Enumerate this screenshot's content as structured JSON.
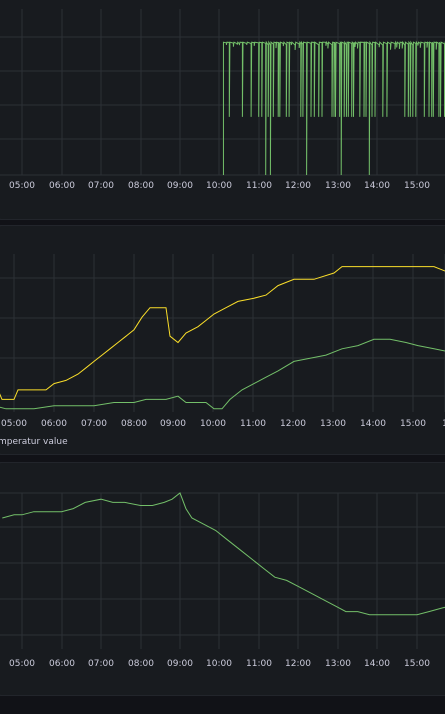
{
  "dashboard": {
    "theme": {
      "background": "#111217",
      "panel_bg": "#181b1f",
      "grid": "#2c3036",
      "text": "#ccccdc"
    }
  },
  "chart_data": [
    {
      "type": "line",
      "title": "",
      "xlabel": "",
      "ylabel": "",
      "grid": true,
      "x_ticks": [
        "05:00",
        "06:00",
        "07:00",
        "08:00",
        "09:00",
        "10:00",
        "11:00",
        "12:00",
        "13:00",
        "14:00",
        "15:00"
      ],
      "x_range_hours": [
        4.5,
        16.2
      ],
      "y_range": [
        0,
        4
      ],
      "series": [
        {
          "color": "#73bf69",
          "style": "binary-dense",
          "start_hour": 10.1,
          "high": 3.2,
          "low_mid": 1.4,
          "drops_to_zero_at_hours": [
            10.1,
            11.15,
            11.3,
            12.2,
            13.1,
            13.8
          ]
        }
      ]
    },
    {
      "type": "line",
      "title": "",
      "xlabel": "",
      "ylabel": "",
      "grid": true,
      "legend": {
        "placement": "bottom-left",
        "text": "mperatur value"
      },
      "x_ticks": [
        "05:00",
        "06:00",
        "07:00",
        "08:00",
        "09:00",
        "10:00",
        "11:00",
        "12:00",
        "13:00",
        "14:00",
        "15:00",
        "1"
      ],
      "x_range_hours": [
        4.0,
        15.9
      ],
      "y_range": [
        0,
        5
      ],
      "series": [
        {
          "color": "#fade2a",
          "points": [
            [
              4.0,
              0.7
            ],
            [
              4.6,
              0.7
            ],
            [
              4.7,
              0.4
            ],
            [
              5.0,
              0.4
            ],
            [
              5.1,
              0.7
            ],
            [
              5.8,
              0.7
            ],
            [
              6.0,
              0.9
            ],
            [
              6.3,
              1.0
            ],
            [
              6.6,
              1.2
            ],
            [
              6.8,
              1.4
            ],
            [
              7.0,
              1.6
            ],
            [
              7.2,
              1.8
            ],
            [
              7.4,
              2.0
            ],
            [
              7.6,
              2.2
            ],
            [
              7.8,
              2.4
            ],
            [
              8.0,
              2.6
            ],
            [
              8.2,
              3.0
            ],
            [
              8.4,
              3.3
            ],
            [
              8.7,
              3.3
            ],
            [
              8.8,
              3.3
            ],
            [
              8.9,
              2.4
            ],
            [
              9.1,
              2.2
            ],
            [
              9.3,
              2.5
            ],
            [
              9.6,
              2.7
            ],
            [
              9.8,
              2.9
            ],
            [
              10.0,
              3.1
            ],
            [
              10.3,
              3.3
            ],
            [
              10.6,
              3.5
            ],
            [
              11.0,
              3.6
            ],
            [
              11.3,
              3.7
            ],
            [
              11.6,
              4.0
            ],
            [
              12.0,
              4.2
            ],
            [
              12.5,
              4.2
            ],
            [
              13.0,
              4.4
            ],
            [
              13.2,
              4.6
            ],
            [
              13.8,
              4.6
            ],
            [
              14.5,
              4.6
            ],
            [
              15.5,
              4.6
            ],
            [
              15.9,
              4.4
            ]
          ]
        },
        {
          "color": "#73bf69",
          "points": [
            [
              4.0,
              0.2
            ],
            [
              4.5,
              0.2
            ],
            [
              4.8,
              0.1
            ],
            [
              5.5,
              0.1
            ],
            [
              6.0,
              0.2
            ],
            [
              7.0,
              0.2
            ],
            [
              7.5,
              0.3
            ],
            [
              8.0,
              0.3
            ],
            [
              8.3,
              0.4
            ],
            [
              8.8,
              0.4
            ],
            [
              9.1,
              0.5
            ],
            [
              9.3,
              0.3
            ],
            [
              9.8,
              0.3
            ],
            [
              10.0,
              0.1
            ],
            [
              10.2,
              0.1
            ],
            [
              10.4,
              0.4
            ],
            [
              10.7,
              0.7
            ],
            [
              11.0,
              0.9
            ],
            [
              11.3,
              1.1
            ],
            [
              11.6,
              1.3
            ],
            [
              12.0,
              1.6
            ],
            [
              12.4,
              1.7
            ],
            [
              12.8,
              1.8
            ],
            [
              13.2,
              2.0
            ],
            [
              13.6,
              2.1
            ],
            [
              14.0,
              2.3
            ],
            [
              14.4,
              2.3
            ],
            [
              14.8,
              2.2
            ],
            [
              15.1,
              2.1
            ],
            [
              15.5,
              2.0
            ],
            [
              15.9,
              1.9
            ]
          ]
        }
      ]
    },
    {
      "type": "line",
      "title": "",
      "xlabel": "",
      "ylabel": "",
      "grid": true,
      "x_ticks": [
        "05:00",
        "06:00",
        "07:00",
        "08:00",
        "09:00",
        "10:00",
        "11:00",
        "12:00",
        "13:00",
        "14:00",
        "15:00"
      ],
      "x_range_hours": [
        4.5,
        16.2
      ],
      "y_range": [
        0,
        5
      ],
      "series": [
        {
          "color": "#73bf69",
          "points": [
            [
              4.5,
              4.2
            ],
            [
              4.8,
              4.3
            ],
            [
              5.0,
              4.3
            ],
            [
              5.3,
              4.4
            ],
            [
              5.6,
              4.4
            ],
            [
              6.0,
              4.4
            ],
            [
              6.3,
              4.5
            ],
            [
              6.6,
              4.7
            ],
            [
              7.0,
              4.8
            ],
            [
              7.3,
              4.7
            ],
            [
              7.6,
              4.7
            ],
            [
              8.0,
              4.6
            ],
            [
              8.3,
              4.6
            ],
            [
              8.6,
              4.7
            ],
            [
              8.8,
              4.8
            ],
            [
              9.0,
              5.0
            ],
            [
              9.15,
              4.5
            ],
            [
              9.3,
              4.2
            ],
            [
              9.6,
              4.0
            ],
            [
              9.9,
              3.8
            ],
            [
              10.2,
              3.5
            ],
            [
              10.5,
              3.2
            ],
            [
              10.8,
              2.9
            ],
            [
              11.1,
              2.6
            ],
            [
              11.4,
              2.3
            ],
            [
              11.7,
              2.2
            ],
            [
              12.0,
              2.0
            ],
            [
              12.3,
              1.8
            ],
            [
              12.6,
              1.6
            ],
            [
              12.9,
              1.4
            ],
            [
              13.2,
              1.2
            ],
            [
              13.5,
              1.2
            ],
            [
              13.8,
              1.1
            ],
            [
              14.1,
              1.1
            ],
            [
              14.4,
              1.1
            ],
            [
              14.7,
              1.1
            ],
            [
              15.0,
              1.1
            ],
            [
              15.3,
              1.2
            ],
            [
              15.6,
              1.3
            ],
            [
              15.9,
              1.4
            ],
            [
              16.2,
              1.4
            ]
          ]
        }
      ]
    }
  ]
}
